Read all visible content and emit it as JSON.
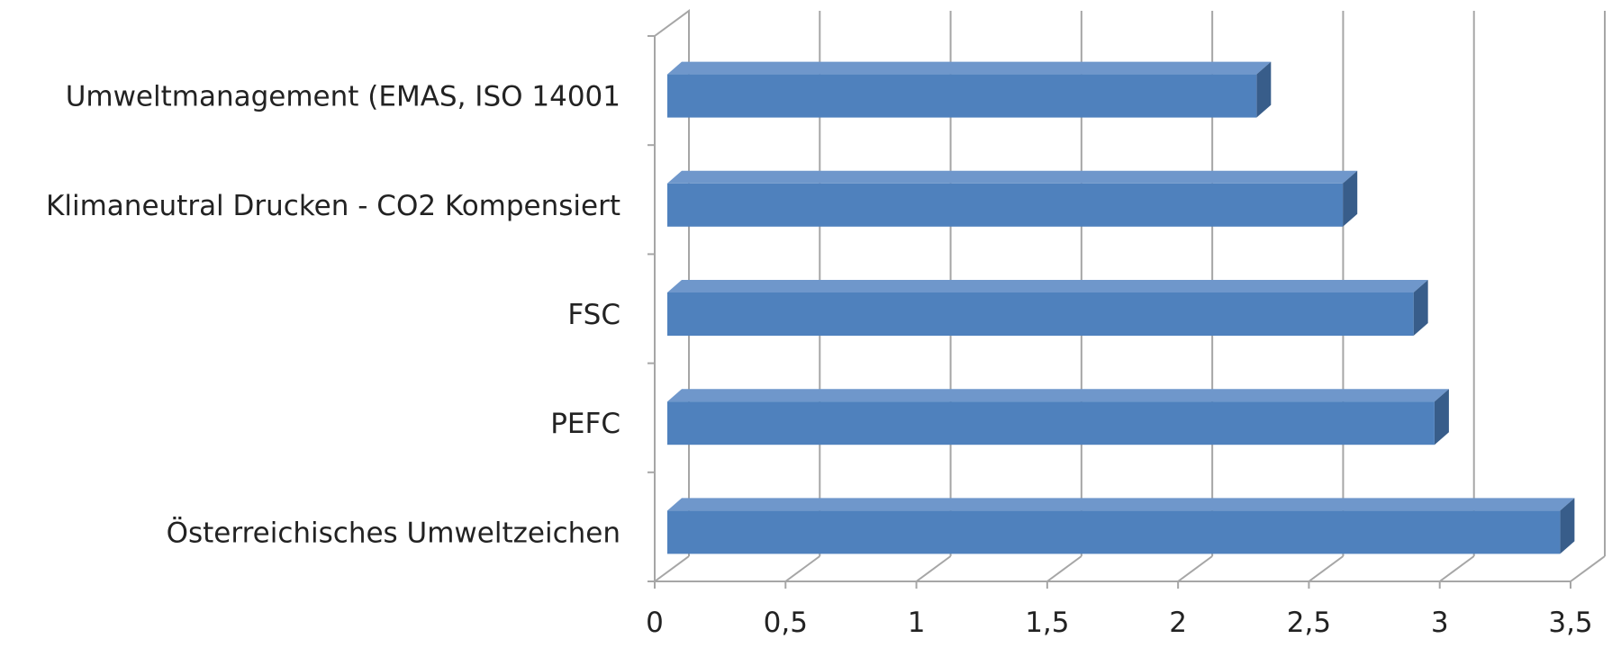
{
  "chart_data": {
    "type": "bar",
    "orientation": "horizontal",
    "style": "3d",
    "categories": [
      "Umweltmanagement (EMAS, ISO 14001",
      "Klimaneutral Drucken - CO2 Kompensiert",
      "FSC",
      "PEFC",
      "Österreichisches Umweltzeichen"
    ],
    "values": [
      2.3,
      2.63,
      2.9,
      2.98,
      3.46
    ],
    "xlim": [
      0,
      3.5
    ],
    "xticks": [
      {
        "value": 0,
        "label": "0"
      },
      {
        "value": 0.5,
        "label": "0,5"
      },
      {
        "value": 1,
        "label": "1"
      },
      {
        "value": 1.5,
        "label": "1,5"
      },
      {
        "value": 2,
        "label": "2"
      },
      {
        "value": 2.5,
        "label": "2,5"
      },
      {
        "value": 3,
        "label": "3"
      },
      {
        "value": 3.5,
        "label": "3,5"
      }
    ],
    "title": "",
    "xlabel": "",
    "ylabel": "",
    "grid": true,
    "legend": "none",
    "colors": {
      "bar_front": "#4F81BD",
      "bar_top": "#6F97CB",
      "bar_side": "#385D8A",
      "grid": "#A6A6A6"
    }
  }
}
